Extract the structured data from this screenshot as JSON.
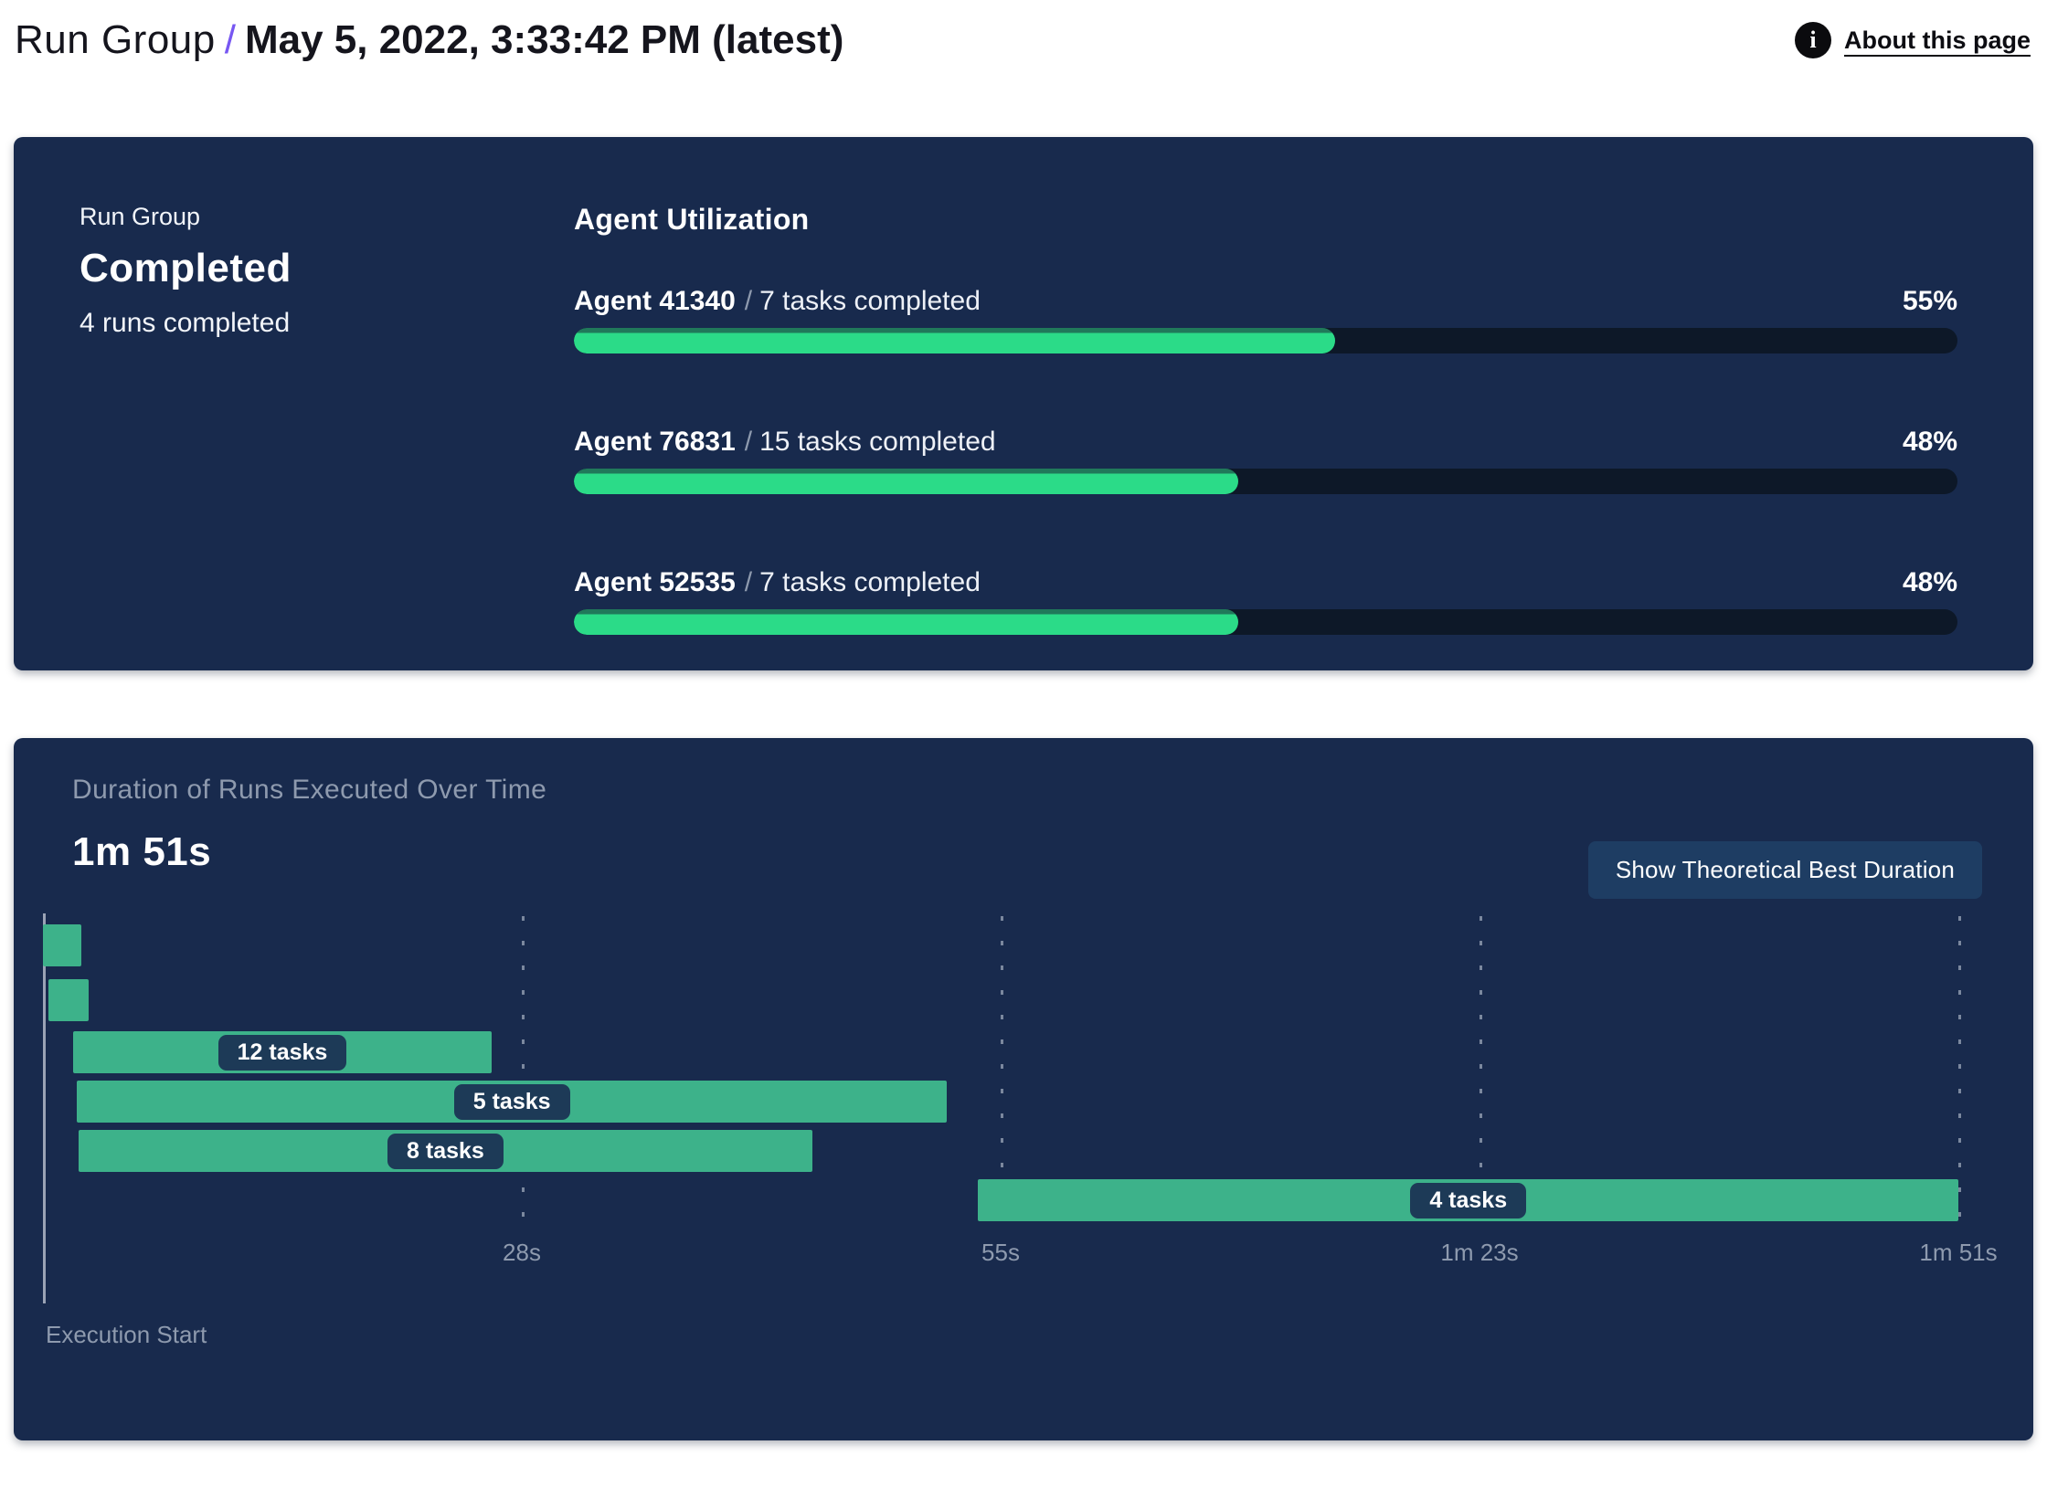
{
  "header": {
    "breadcrumb_primary": "Run Group",
    "separator": "/",
    "title": "May 5, 2022, 3:33:42 PM (latest)",
    "about_link": "About this page",
    "info_icon_glyph": "i"
  },
  "colors": {
    "panel_background": "#182a4d",
    "progress_fill": "#2bdb88",
    "progress_fill_edge": "#20795a",
    "progress_track": "#0d1828",
    "gantt_bar": "#3db28a",
    "label_pill": "#1d3a57",
    "muted_text": "#8e9aae",
    "button_background": "#1e3d63",
    "accent_slash": "#7757f2"
  },
  "run_group_panel": {
    "label": "Run Group",
    "status": "Completed",
    "runs_summary": "4 runs completed",
    "agent_utilization": {
      "title": "Agent Utilization",
      "agents": [
        {
          "name": "Agent 41340",
          "separator": "/",
          "tasks": "7 tasks completed",
          "percent": 55,
          "percent_label": "55%"
        },
        {
          "name": "Agent 76831",
          "separator": "/",
          "tasks": "15 tasks completed",
          "percent": 48,
          "percent_label": "48%"
        },
        {
          "name": "Agent 52535",
          "separator": "/",
          "tasks": "7 tasks completed",
          "percent": 48,
          "percent_label": "48%"
        }
      ]
    }
  },
  "duration_panel": {
    "subtitle": "Duration of Runs Executed Over Time",
    "headline": "1m 51s",
    "button_label": "Show Theoretical Best Duration",
    "execution_start_label": "Execution Start"
  },
  "chart_data": {
    "type": "gantt",
    "title": "Duration of Runs Executed Over Time",
    "total_duration_s": 111,
    "total_duration_label": "1m 51s",
    "x_ticks": [
      {
        "t": 27.75,
        "label": "28s"
      },
      {
        "t": 55.5,
        "label": "55s"
      },
      {
        "t": 83.25,
        "label": "1m 23s"
      },
      {
        "t": 111,
        "label": "1m 51s"
      }
    ],
    "bars": [
      {
        "start_s": 0,
        "end_s": 2.2,
        "task_count": null,
        "label": ""
      },
      {
        "start_s": 0.3,
        "end_s": 2.65,
        "task_count": null,
        "label": ""
      },
      {
        "start_s": 1.75,
        "end_s": 26,
        "task_count": 12,
        "label": "12 tasks"
      },
      {
        "start_s": 1.95,
        "end_s": 52.4,
        "task_count": 5,
        "label": "5 tasks"
      },
      {
        "start_s": 2.05,
        "end_s": 44.6,
        "task_count": 8,
        "label": "8 tasks"
      },
      {
        "start_s": 54.2,
        "end_s": 111,
        "task_count": 4,
        "label": "4 tasks"
      }
    ],
    "x_axis_start_label": "Execution Start",
    "legend": "none",
    "grid": "vertical-dashed"
  }
}
